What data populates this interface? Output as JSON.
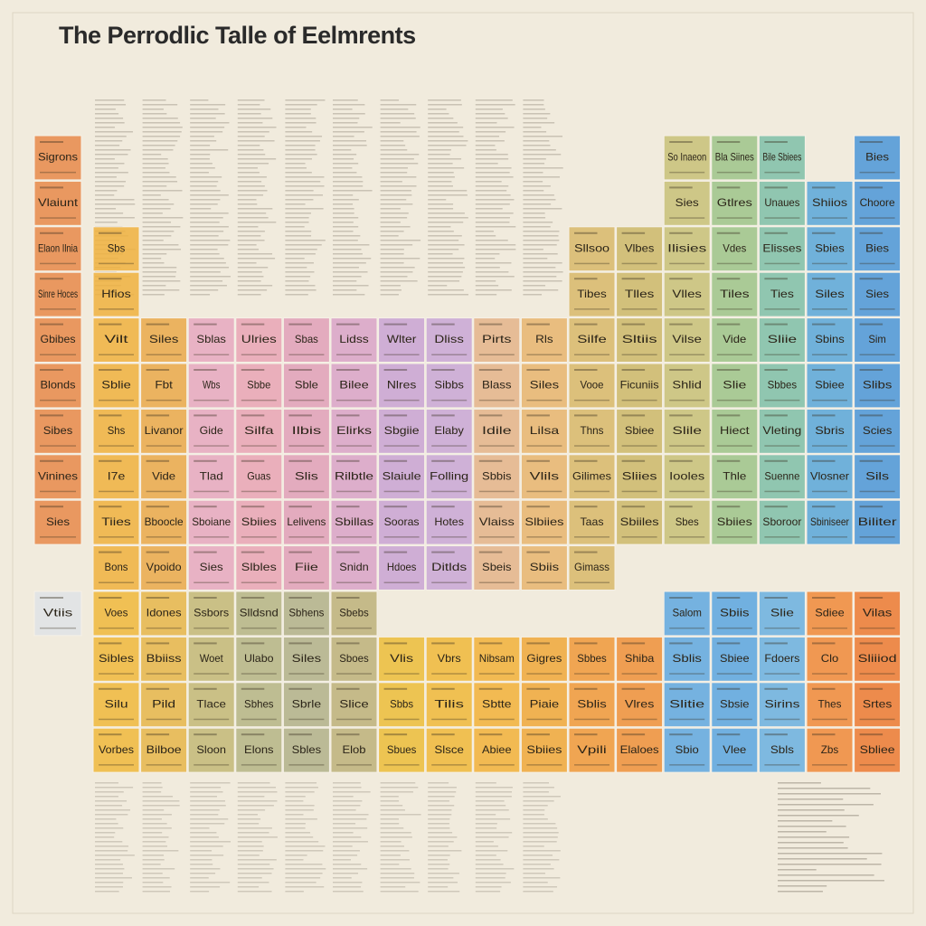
{
  "title": "The Perrodlic Talle of Eelmrents",
  "table": {
    "rows": [
      [
        "Sigrons",
        null,
        null,
        null,
        null,
        null,
        null,
        null,
        null,
        null,
        null,
        null,
        null,
        "So Inaeon",
        "Bla Siines",
        "Bile Sbiees",
        null,
        "Bies"
      ],
      [
        "Vlaiunt",
        null,
        null,
        null,
        null,
        null,
        null,
        null,
        null,
        null,
        null,
        null,
        null,
        "Sies",
        "Gtlres",
        "Unaues",
        "Shiios",
        "Choore"
      ],
      [
        "Elaon Ilnia",
        "Sbs",
        null,
        null,
        null,
        null,
        null,
        null,
        null,
        null,
        null,
        "Sllsoo",
        "Vlbes",
        "Ilisies",
        "Vdes",
        "Elisses",
        "Sbies",
        "Bies"
      ],
      [
        "Sinre Hoces",
        "Hfios",
        null,
        null,
        null,
        null,
        null,
        null,
        null,
        null,
        null,
        "Tibes",
        "Tlles",
        "Vlles",
        "Tiles",
        "Ties",
        "Siles",
        "Sies"
      ],
      [
        "Gbibes",
        "Vilt",
        "Siles",
        "Sblas",
        "Ulries",
        "Sbas",
        "Lidss",
        "Wlter",
        "Dliss",
        "Pirts",
        "Rls",
        "Silfe",
        "Sltiis",
        "Vilse",
        "Vide",
        "Sliie",
        "Sbins",
        "Sim"
      ],
      [
        "Blonds",
        "Sblie",
        "Fbt",
        "Wbs",
        "Sbbe",
        "Sble",
        "Bilee",
        "Nlres",
        "Sibbs",
        "Blass",
        "Siles",
        "Vooe",
        "Ficuniis",
        "Shlid",
        "Slie",
        "Sbbes",
        "Sbiee",
        "Slibs"
      ],
      [
        "Sibes",
        "Shs",
        "Livanor",
        "Gide",
        "Silfa",
        "Ilbis",
        "Elirks",
        "Sbgiie",
        "Elaby",
        "Idile",
        "Lilsa",
        "Thns",
        "Sbiee",
        "Slile",
        "Hiect",
        "Vleting",
        "Sbris",
        "Scies"
      ],
      [
        "Vinines",
        "I7e",
        "Vide",
        "Tlad",
        "Guas",
        "Slis",
        "Rilbtle",
        "Slaiule",
        "Folling",
        "Sbbis",
        "Vlils",
        "Gilimes",
        "Sliies",
        "Iooles",
        "Thle",
        "Suenne",
        "Vlosner",
        "Sils"
      ],
      [
        "Sies",
        "Tiies",
        "Bboocle",
        "Sboiane",
        "Sbiies",
        "Lelivens",
        "Sbillas",
        "Sooras",
        "Hotes",
        "Vlaiss",
        "Slbiies",
        "Taas",
        "Sbiiles",
        "Sbes",
        "Sbiies",
        "Sboroor",
        "Sbiniseer",
        "Biliter"
      ],
      [
        null,
        "Bons",
        "Vpoido",
        "Sies",
        "Slbles",
        "Fiie",
        "Snidn",
        "Hdoes",
        "Ditlds",
        "Sbeis",
        "Sbiis",
        "Gimass",
        null,
        null,
        null,
        null,
        null,
        null
      ],
      [
        "Vtiis",
        "Voes",
        "Idones",
        "Ssbors",
        "Slldsnd",
        "Sbhens",
        "Sbebs",
        null,
        null,
        null,
        null,
        null,
        null,
        "Salom",
        "Sbiis",
        "Slie",
        "Sdiee",
        "Vilas"
      ],
      [
        null,
        "Sibles",
        "Bbiiss",
        "Woet",
        "Ulabo",
        "Siles",
        "Sboes",
        "Vlis",
        "Vbrs",
        "Nibsam",
        "Gigres",
        "Sbbes",
        "Shiba",
        "Sblis",
        "Sbiee",
        "Fdoers",
        "Clo",
        "Sliiiod"
      ],
      [
        null,
        "Silu",
        "Pild",
        "Tlace",
        "Sbhes",
        "Sbrle",
        "Slice",
        "Sbbs",
        "Tilis",
        "Sbtte",
        "Piaie",
        "Sblis",
        "Vlres",
        "Slitie",
        "Sbsie",
        "Sirins",
        "Thes",
        "Srtes"
      ],
      [
        null,
        "Vorbes",
        "Bilboe",
        "Sloon",
        "Elons",
        "Sbles",
        "Elob",
        "Sbues",
        "Slsce",
        "Abiee",
        "Sbiies",
        "Vpili",
        "Elaloes",
        "Sbio",
        "Vlee",
        "Sbls",
        "Zbs",
        "Sbliee"
      ]
    ]
  },
  "column_colors": [
    "#e8894a",
    "#f0b23e",
    "#eaa94a",
    "#e6a8c0",
    "#e9a5b5",
    "#e0a0b8",
    "#d9a3c8",
    "#c9a3d4",
    "#c9a7d6",
    "#e4b48a",
    "#e8b56e",
    "#d8b86a",
    "#cdb96a",
    "#c8c178",
    "#9dc48a",
    "#7fbfa8",
    "#59a7d9",
    "#4b96d8"
  ],
  "lower_column_colors": [
    "#dfe3e6",
    "#f0b83c",
    "#e6b64a",
    "#c3b877",
    "#b5b585",
    "#b1b28a",
    "#bdb17a",
    "#ecbd3a",
    "#f0b93a",
    "#f2b23a",
    "#f0a83a",
    "#f0993a",
    "#ee913a",
    "#5fa8e0",
    "#5aa6e0",
    "#6ab0e0",
    "#f08a3a",
    "#ec7a33"
  ]
}
